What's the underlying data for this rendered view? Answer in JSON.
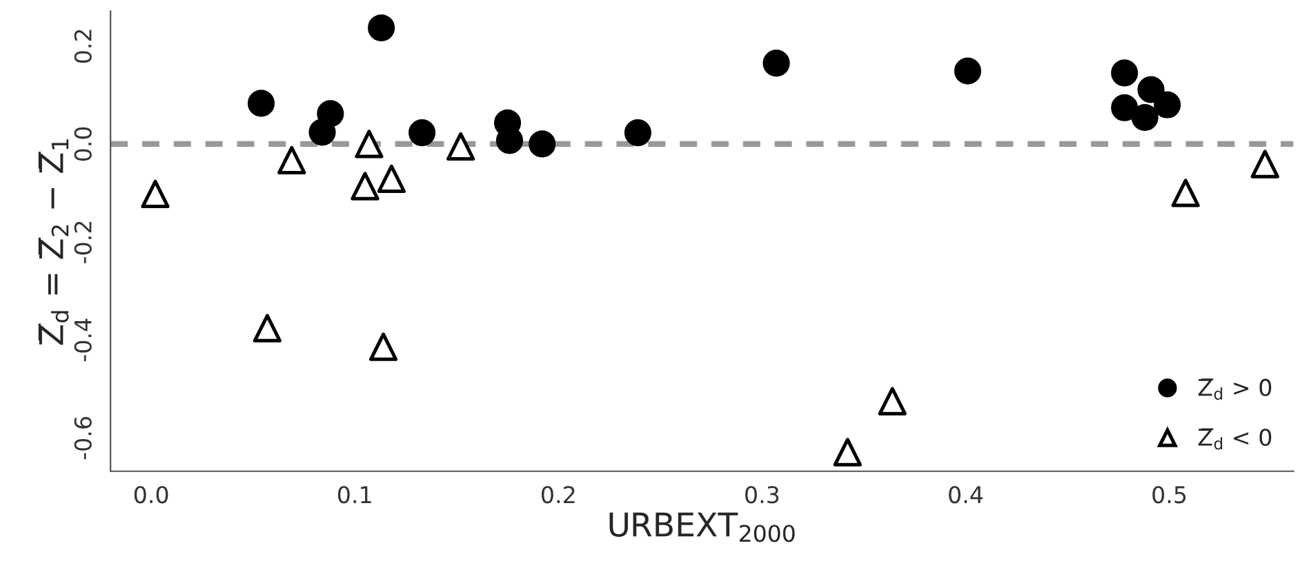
{
  "chart_data": {
    "type": "scatter",
    "xlabel": "URBEXT$_{2000}$",
    "ylabel": "Z̅$_{d}$ = Z̅$_{2}$ − Z̅$_{1}$",
    "series": [
      {
        "name": "Z̅$_{d}$ > 0",
        "color": "#000000",
        "marker": "circle",
        "x": [
          0.054,
          0.113,
          0.084,
          0.088,
          0.133,
          0.175,
          0.176,
          0.192,
          0.239,
          0.307,
          0.401,
          0.478,
          0.491,
          0.499,
          0.478,
          0.488
        ],
        "values": [
          0.083,
          0.237,
          0.024,
          0.062,
          0.023,
          0.043,
          0.007,
          0.0,
          0.023,
          0.165,
          0.149,
          0.145,
          0.111,
          0.08,
          0.074,
          0.054
        ]
      },
      {
        "name": "Z̅$_{d}$ < 0",
        "color": "#000000",
        "marker": "triangle",
        "x": [
          0.002,
          0.057,
          0.069,
          0.107,
          0.105,
          0.118,
          0.114,
          0.152,
          0.508,
          0.547,
          0.364,
          0.342
        ],
        "values": [
          -0.102,
          -0.376,
          -0.033,
          0.0,
          -0.086,
          -0.071,
          -0.414,
          -0.005,
          -0.1,
          -0.041,
          -0.525,
          -0.629
        ]
      }
    ],
    "xlim": [
      -0.02,
      0.561
    ],
    "xticks": [
      {
        "value": 0,
        "label": "0.0"
      },
      0.1,
      0.2,
      0.3,
      0.4,
      0.5
    ],
    "ylim": [
      -0.668,
      0.271
    ],
    "yticks": [
      -0.6,
      -0.4,
      -0.2,
      {
        "value": 0,
        "label": "0.0"
      },
      0.2
    ],
    "ref_lines": [
      {
        "axis": "y",
        "value": 0,
        "color": "#999999",
        "line_style": "dashed"
      }
    ],
    "grid": false,
    "legend": "bottom right"
  }
}
